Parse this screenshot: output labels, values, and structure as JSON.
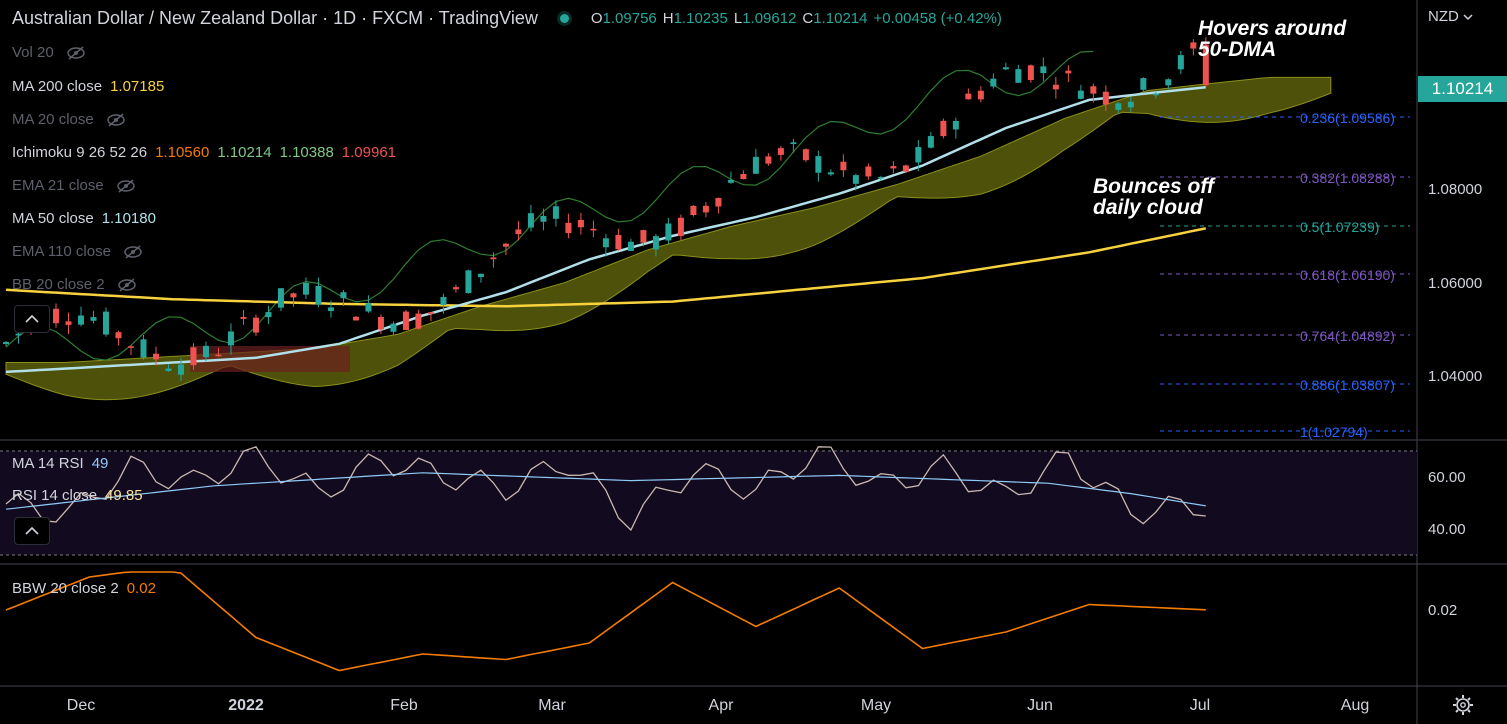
{
  "header": {
    "title": "Australian Dollar / New Zealand Dollar · 1D · FXCM · TradingView",
    "ohlc": [
      {
        "k": "O",
        "v": "1.09756"
      },
      {
        "k": "H",
        "v": "1.10235"
      },
      {
        "k": "L",
        "v": "1.09612"
      },
      {
        "k": "C",
        "v": "1.10214"
      },
      {
        "k": "",
        "v": "+0.00458 (+0.42%)"
      }
    ]
  },
  "currency": "NZD",
  "last_price": "1.10214",
  "colors": {
    "up": "#26a69a",
    "down": "#ef5350",
    "ma200": "#f7d23e",
    "ma50": "#b2e0ea",
    "cloud_bull": "#5b5f0a",
    "cloud_bear": "#6b1f1f",
    "ichi_orange": "#f57c00",
    "rsi": "#c9b7b0",
    "bbw": "#f57c00"
  },
  "legends": {
    "vol": {
      "label": "Vol 20"
    },
    "ma200": {
      "label": "MA 200 close",
      "value": "1.07185"
    },
    "ma20": {
      "label": "MA 20 close"
    },
    "ichimoku": {
      "label": "Ichimoku 9 26 52 26",
      "v1": "1.10560",
      "v2": "1.10214",
      "v3": "1.10388",
      "v4": "1.09961"
    },
    "ema21": {
      "label": "EMA 21 close"
    },
    "ma50": {
      "label": "MA 50 close",
      "value": "1.10180"
    },
    "ema110": {
      "label": "EMA 110 close"
    },
    "bb": {
      "label": "BB 20 close 2"
    },
    "ma14rsi": {
      "label": "MA 14 RSI",
      "value": "49"
    },
    "rsi": {
      "label": "RSI 14 close",
      "value": "49.85"
    },
    "bbw": {
      "label": "BBW 20 close 2",
      "value": "0.02"
    }
  },
  "annotations": {
    "a1": "Hovers around",
    "a2": "50-DMA",
    "b1": "Bounces off",
    "b2": "daily cloud"
  },
  "fib_levels": [
    {
      "label": "0.236(1.09586)",
      "color": "#2962ff"
    },
    {
      "label": "0.382(1.08288)",
      "color": "#7e57c2"
    },
    {
      "label": "0.5(1.07239)",
      "color": "#26a69a"
    },
    {
      "label": "0.618(1.06190)",
      "color": "#7e57c2"
    },
    {
      "label": "0.764(1.04892)",
      "color": "#7e57c2"
    },
    {
      "label": "0.886(1.03807)",
      "color": "#2962ff"
    },
    {
      "label": "1(1.02794)",
      "color": "#2962ff"
    }
  ],
  "price_axis": [
    "1.08000",
    "1.06000",
    "1.04000"
  ],
  "rsi_axis": [
    "60.00",
    "40.00"
  ],
  "bbw_axis": [
    "0.02"
  ],
  "time_axis": [
    "Dec",
    "2022",
    "Feb",
    "Mar",
    "Apr",
    "May",
    "Jun",
    "Jul",
    "Aug"
  ],
  "chart_data": {
    "type": "candlestick",
    "title": "Australian Dollar / New Zealand Dollar · 1D · FXCM",
    "ylim": [
      1.025,
      1.118
    ],
    "series": [
      {
        "name": "MA 200 close",
        "x": [
          0,
          40,
          80,
          120,
          160,
          220,
          260,
          289
        ],
        "values": [
          1.0585,
          1.0565,
          1.0555,
          1.055,
          1.056,
          1.061,
          1.0665,
          1.0718
        ]
      },
      {
        "name": "MA 50 close",
        "x": [
          0,
          20,
          40,
          60,
          80,
          100,
          120,
          140,
          160,
          180,
          200,
          220,
          240,
          260,
          270,
          289
        ],
        "values": [
          1.041,
          1.042,
          1.043,
          1.044,
          1.047,
          1.053,
          1.058,
          1.065,
          1.07,
          1.074,
          1.079,
          1.085,
          1.093,
          1.099,
          1.1,
          1.1018
        ]
      },
      {
        "name": "RSI 14 close",
        "x": [
          0,
          15,
          30,
          45,
          60,
          75,
          90,
          105,
          120,
          135,
          150,
          165,
          180,
          195,
          210,
          225,
          240,
          255,
          270,
          289
        ],
        "values": [
          50,
          46,
          64,
          58,
          69,
          54,
          67,
          61,
          56,
          66,
          44,
          63,
          55,
          70,
          57,
          64,
          53,
          68,
          47,
          49.85
        ]
      },
      {
        "name": "MA 14 RSI",
        "x": [
          0,
          50,
          100,
          150,
          200,
          250,
          270,
          289
        ],
        "values": [
          48,
          57,
          62,
          59,
          61,
          58,
          54,
          49
        ]
      },
      {
        "name": "BBW 20 close 2",
        "x": [
          0,
          20,
          40,
          60,
          80,
          100,
          120,
          140,
          160,
          180,
          200,
          220,
          240,
          260,
          289
        ],
        "values": [
          0.021,
          0.027,
          0.029,
          0.016,
          0.01,
          0.013,
          0.012,
          0.015,
          0.026,
          0.018,
          0.025,
          0.014,
          0.017,
          0.022,
          0.021
        ]
      }
    ],
    "candles_summary": {
      "open": 1.09756,
      "high": 1.10235,
      "low": 1.09612,
      "close": 1.10214
    }
  }
}
